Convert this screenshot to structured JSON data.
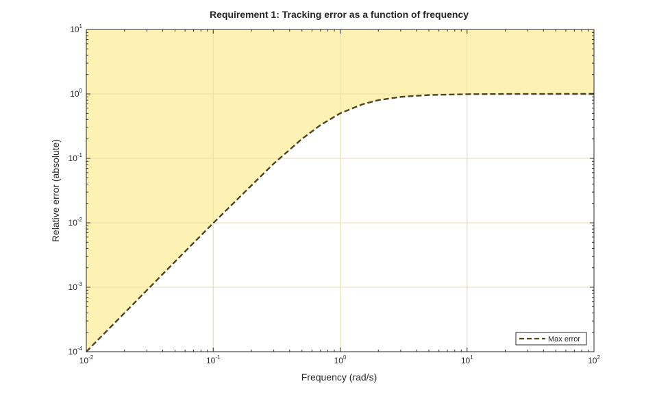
{
  "chart_data": {
    "type": "line",
    "title": "Requirement 1: Tracking error as a function of frequency",
    "xlabel": "Frequency (rad/s)",
    "ylabel": "Relative error (absolute)",
    "xscale": "log",
    "yscale": "log",
    "xlim": [
      0.01,
      100
    ],
    "ylim": [
      0.0001,
      10
    ],
    "grid": true,
    "legend_location": "bottom-right",
    "x_ticks": [
      {
        "value": 0.01,
        "base": "10",
        "exp": "-2"
      },
      {
        "value": 0.1,
        "base": "10",
        "exp": "-1"
      },
      {
        "value": 1,
        "base": "10",
        "exp": "0"
      },
      {
        "value": 10,
        "base": "10",
        "exp": "1"
      },
      {
        "value": 100,
        "base": "10",
        "exp": "2"
      }
    ],
    "y_ticks": [
      {
        "value": 0.0001,
        "base": "10",
        "exp": "-4"
      },
      {
        "value": 0.001,
        "base": "10",
        "exp": "-3"
      },
      {
        "value": 0.01,
        "base": "10",
        "exp": "-2"
      },
      {
        "value": 0.1,
        "base": "10",
        "exp": "-1"
      },
      {
        "value": 1,
        "base": "10",
        "exp": "0"
      },
      {
        "value": 10,
        "base": "10",
        "exp": "1"
      }
    ],
    "series": [
      {
        "name": "Max error",
        "style": "dashed",
        "color": "#4d4420",
        "x": [
          0.01,
          0.02,
          0.05,
          0.1,
          0.2,
          0.3,
          0.5,
          0.7,
          1,
          1.5,
          2,
          3,
          5,
          10,
          20,
          50,
          100
        ],
        "y": [
          0.0001,
          0.0004,
          0.0025,
          0.0099,
          0.038,
          0.083,
          0.2,
          0.329,
          0.5,
          0.69,
          0.8,
          0.9,
          0.962,
          0.99,
          0.9975,
          0.9996,
          0.9999
        ]
      }
    ],
    "shaded_region": {
      "description": "area above the Max error curve",
      "fill_color": "#fdf2b3"
    }
  }
}
